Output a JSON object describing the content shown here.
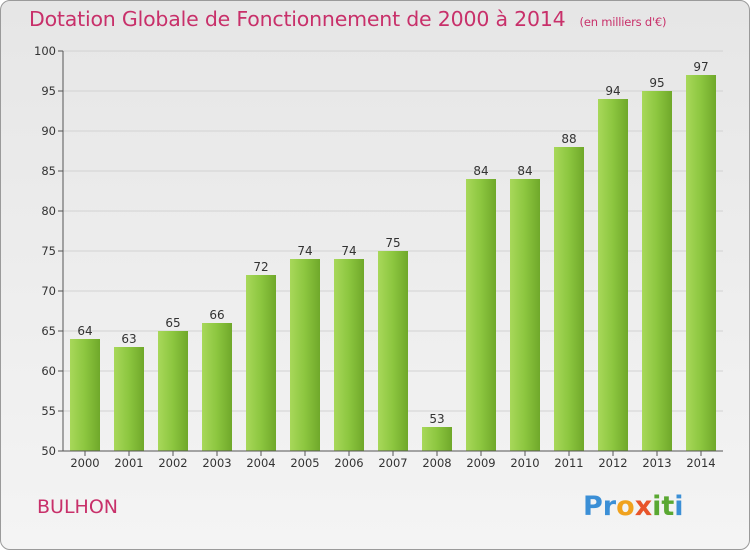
{
  "chart_data": {
    "type": "bar",
    "title": "Dotation Globale de Fonctionnement de 2000 à 2014",
    "subtitle": "(en milliers d'€)",
    "categories": [
      "2000",
      "2001",
      "2002",
      "2003",
      "2004",
      "2005",
      "2006",
      "2007",
      "2008",
      "2009",
      "2010",
      "2011",
      "2012",
      "2013",
      "2014"
    ],
    "values": [
      64,
      63,
      65,
      66,
      72,
      74,
      74,
      75,
      53,
      84,
      84,
      88,
      94,
      95,
      97
    ],
    "ylim": [
      50,
      100
    ],
    "yticks": [
      50,
      55,
      60,
      65,
      70,
      75,
      80,
      85,
      90,
      95,
      100
    ],
    "grid": true,
    "bar_color": "#8cc63f",
    "title_color": "#c8306a"
  },
  "location": "BULHON",
  "logo": {
    "letters": [
      {
        "char": "P",
        "color": "#3b8fd6"
      },
      {
        "char": "r",
        "color": "#3b8fd6"
      },
      {
        "char": "o",
        "color": "#f0a21e"
      },
      {
        "char": "x",
        "color": "#e8542a"
      },
      {
        "char": "i",
        "color": "#5aa832"
      },
      {
        "char": "t",
        "color": "#5aa832"
      },
      {
        "char": "i",
        "color": "#3b8fd6"
      }
    ]
  }
}
